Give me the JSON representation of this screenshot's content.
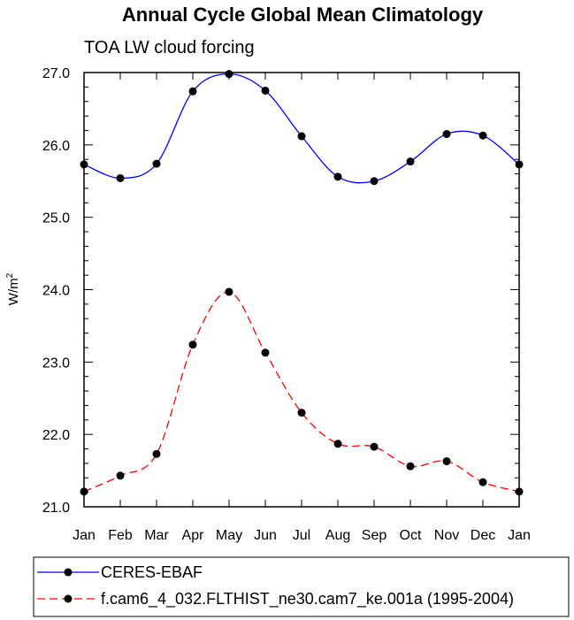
{
  "chart_data": {
    "type": "line",
    "title": "Annual Cycle Global Mean Climatology",
    "subtitle": "TOA LW cloud forcing",
    "ylabel": "W/m",
    "ylabel_sup": "2",
    "xlabel": "",
    "categories": [
      "Jan",
      "Feb",
      "Mar",
      "Apr",
      "May",
      "Jun",
      "Jul",
      "Aug",
      "Sep",
      "Oct",
      "Nov",
      "Dec",
      "Jan"
    ],
    "ylim": [
      21.0,
      27.0
    ],
    "yticks": [
      "21.0",
      "22.0",
      "23.0",
      "24.0",
      "25.0",
      "26.0",
      "27.0"
    ],
    "grid": false,
    "legend_position": "bottom",
    "series": [
      {
        "name": "CERES-EBAF",
        "color": "#0000ff",
        "dash": "solid",
        "values": [
          25.73,
          25.54,
          25.74,
          26.74,
          26.98,
          26.75,
          26.12,
          25.56,
          25.5,
          25.77,
          26.15,
          26.13,
          25.73
        ]
      },
      {
        "name": "f.cam6_4_032.FLTHIST_ne30.cam7_ke.001a (1995-2004)",
        "color": "#ff0000",
        "dash": "dashed",
        "values": [
          21.21,
          21.43,
          21.73,
          23.24,
          23.97,
          23.13,
          22.3,
          21.87,
          21.83,
          21.56,
          21.63,
          21.34,
          21.21
        ]
      }
    ]
  }
}
